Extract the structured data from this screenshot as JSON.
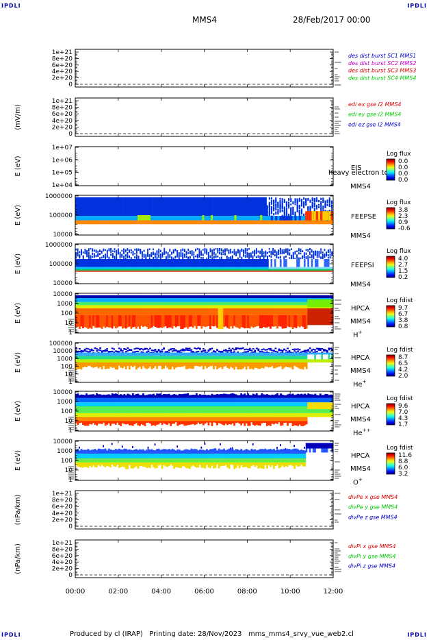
{
  "header": {
    "corner_tl": "IPDLI",
    "corner_tr": "IPDLI",
    "corner_bl": "IPDLI",
    "corner_br": "IPDLI",
    "mission": "MMS4",
    "date": "28/Feb/2017 00:00"
  },
  "footer": {
    "text": "Produced by cl (IRAP)   Printing date: 28/Nov/2023   mms_mms4_srvy_vue_web2.cl"
  },
  "colors": {
    "blue": "#0000cc",
    "magenta": "#cc00cc",
    "red": "#dd0000",
    "green": "#00cc00"
  },
  "chart_data": {
    "type": "heatmap",
    "x_ticks": [
      "00:00",
      "02:00",
      "04:00",
      "06:00",
      "08:00",
      "10:00",
      "12:00"
    ],
    "xlim_hours": [
      0,
      12
    ],
    "panels": [
      {
        "id": "des-dist",
        "type": "line",
        "ylabel": "",
        "y_ticks": [
          "1e+21",
          "8e+20",
          "6e+20",
          "4e+20",
          "2e+20",
          "0"
        ],
        "legend": [
          {
            "label": "des dist burst SC1 MMS1",
            "color": "#0000cc"
          },
          {
            "label": "des dist burst SC2 MMS2",
            "color": "#cc00cc"
          },
          {
            "label": "des dist burst SC3 MMS3",
            "color": "#dd0000"
          },
          {
            "label": "des dist burst SC4 MMS4",
            "color": "#00cc00"
          }
        ]
      },
      {
        "id": "edi",
        "type": "line",
        "ylabel": "(mV/m)",
        "y_ticks": [
          "1e+21",
          "8e+20",
          "6e+20",
          "4e+20",
          "2e+20",
          "0"
        ],
        "legend": [
          {
            "label": "edi ex gse l2 MMS4",
            "color": "#dd0000"
          },
          {
            "label": "edi ey gse l2 MMS4",
            "color": "#00cc00"
          },
          {
            "label": "edi ez gse l2 MMS4",
            "color": "#0000cc"
          }
        ]
      },
      {
        "id": "eis",
        "type": "heatmap",
        "ylabel": "E (eV)",
        "y_ticks": [
          "1e+07",
          "1e+06",
          "1e+05",
          "1e+04"
        ],
        "side_top": "EIS",
        "side_overlap": "heavy electron to",
        "side_bottom": "MMS4",
        "cbar_title": "Log flux",
        "cbar_ticks": [
          "0.0",
          "0.0",
          "0.0",
          "0.0"
        ],
        "empty": true
      },
      {
        "id": "feepse",
        "type": "heatmap",
        "ylabel": "E (eV)",
        "y_ticks": [
          "1000000",
          "100000",
          "10000"
        ],
        "side_top": "FEEPSE",
        "side_bottom": "MMS4",
        "cbar_title": "Log flux",
        "cbar_ticks": [
          "3.8",
          "2.3",
          "0.9",
          "-0.6"
        ]
      },
      {
        "id": "feepsi",
        "type": "heatmap",
        "ylabel": "E (eV)",
        "y_ticks": [
          "1000000",
          "100000",
          "10000"
        ],
        "side_top": "FEEPSI",
        "side_bottom": "MMS4",
        "cbar_title": "Log flux",
        "cbar_ticks": [
          "4.0",
          "2.7",
          "1.5",
          "0.2"
        ]
      },
      {
        "id": "hpca-h",
        "type": "heatmap",
        "ylabel": "E (eV)",
        "y_ticks": [
          "10000",
          "1000",
          "100",
          "10",
          "1"
        ],
        "side_top": "HPCA",
        "side_bottom": "MMS4",
        "species": "H",
        "species_sup": "+",
        "cbar_title": "Log fdist",
        "cbar_ticks": [
          "9.7",
          "6.7",
          "3.8",
          "0.8"
        ]
      },
      {
        "id": "hpca-he",
        "type": "heatmap",
        "ylabel": "E (eV)",
        "y_ticks": [
          "100000",
          "10000",
          "1000",
          "100",
          "10",
          "1"
        ],
        "side_top": "HPCA",
        "side_bottom": "MMS4",
        "species": "He",
        "species_sup": "+",
        "cbar_title": "Log fdist",
        "cbar_ticks": [
          "8.7",
          "6.5",
          "4.2",
          "2.0"
        ]
      },
      {
        "id": "hpca-hepp",
        "type": "heatmap",
        "ylabel": "E (eV)",
        "y_ticks": [
          "10000",
          "1000",
          "100",
          "10",
          "1"
        ],
        "side_top": "HPCA",
        "side_bottom": "MMS4",
        "species": "He",
        "species_sup": "++",
        "cbar_title": "Log fdist",
        "cbar_ticks": [
          "9.6",
          "7.0",
          "4.3",
          "1.7"
        ]
      },
      {
        "id": "hpca-o",
        "type": "heatmap",
        "ylabel": "E (eV)",
        "y_ticks": [
          "10000",
          "1000",
          "100",
          "10",
          "1"
        ],
        "side_top": "HPCA",
        "side_bottom": "MMS4",
        "species": "O",
        "species_sup": "+",
        "cbar_title": "Log fdist",
        "cbar_ticks": [
          "11.6",
          "8.8",
          "6.0",
          "3.2"
        ]
      },
      {
        "id": "divpe",
        "type": "line",
        "ylabel": "(nPa/km)",
        "y_ticks": [
          "1e+21",
          "8e+20",
          "6e+20",
          "4e+20",
          "2e+20",
          "0"
        ],
        "legend": [
          {
            "label": "divPe x gse MMS4",
            "color": "#dd0000"
          },
          {
            "label": "divPe y gse MMS4",
            "color": "#00cc00"
          },
          {
            "label": "divPe z gse MMS4",
            "color": "#0000cc"
          }
        ]
      },
      {
        "id": "divpi",
        "type": "line",
        "ylabel": "(nPa/km)",
        "y_ticks": [
          "1e+21",
          "8e+20",
          "6e+20",
          "4e+20",
          "2e+20",
          "0"
        ],
        "legend": [
          {
            "label": "divPi x gse MMS4",
            "color": "#dd0000"
          },
          {
            "label": "divPi y gse MMS4",
            "color": "#00cc00"
          },
          {
            "label": "divPi z gse MMS4",
            "color": "#0000cc"
          }
        ]
      }
    ]
  }
}
